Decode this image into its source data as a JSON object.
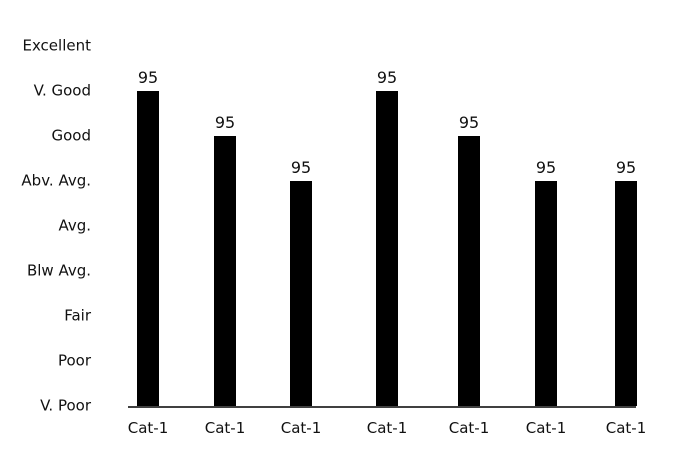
{
  "chart_data": {
    "type": "bar",
    "categories": [
      "Cat-1",
      "Cat-1",
      "Cat-1",
      "Cat-1",
      "Cat-1",
      "Cat-1",
      "Cat-1"
    ],
    "values": [
      7,
      6,
      5,
      7,
      6,
      5,
      5
    ],
    "data_labels": [
      "95",
      "95",
      "95",
      "95",
      "95",
      "95",
      "95"
    ],
    "yticks": [
      {
        "value": 0,
        "label": "V. Poor"
      },
      {
        "value": 1,
        "label": "Poor"
      },
      {
        "value": 2,
        "label": "Fair"
      },
      {
        "value": 3,
        "label": "Blw Avg."
      },
      {
        "value": 4,
        "label": "Avg."
      },
      {
        "value": 5,
        "label": "Abv. Avg."
      },
      {
        "value": 6,
        "label": "Good"
      },
      {
        "value": 7,
        "label": "V. Good"
      },
      {
        "value": 8,
        "label": "Excellent"
      }
    ],
    "ylim": [
      0,
      8
    ],
    "grid": false,
    "legend": "none",
    "title": "",
    "xlabel": "",
    "ylabel": "",
    "colors": {
      "bar": "#000000",
      "text": "#111111",
      "axis": "#000000"
    }
  }
}
